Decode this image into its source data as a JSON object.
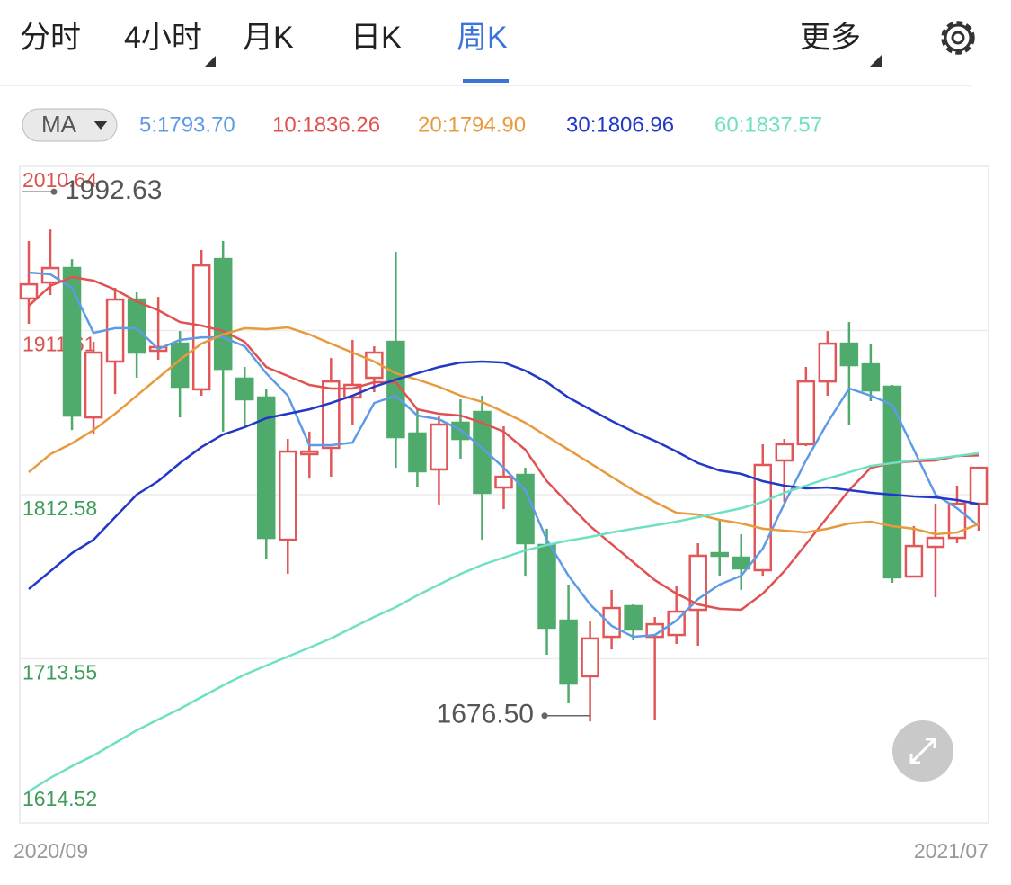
{
  "tabs": [
    "分时",
    "4小时",
    "月K",
    "日K",
    "周K"
  ],
  "active_tab": 4,
  "more": "更多",
  "indicator": "MA",
  "chart_data": {
    "type": "candlestick",
    "categories": [
      "2020/09",
      null,
      null,
      null,
      null,
      null,
      null,
      null,
      null,
      null,
      null,
      null,
      null,
      null,
      null,
      null,
      null,
      null,
      null,
      null,
      null,
      null,
      null,
      null,
      null,
      null,
      null,
      null,
      null,
      null,
      null,
      null,
      null,
      null,
      null,
      null,
      null,
      null,
      null,
      null,
      null,
      null,
      null,
      null,
      "2021/07"
    ],
    "open": [
      1930.9,
      1940.6,
      1949.3,
      1859.2,
      1892.9,
      1930.3,
      1899.4,
      1903.7,
      1876.1,
      1954.7,
      1882.6,
      1871.2,
      1785.4,
      1837.0,
      1840.8,
      1871.2,
      1883.1,
      1904.8,
      1849.5,
      1827.8,
      1856.0,
      1862.5,
      1816.9,
      1824.5,
      1782.2,
      1736.6,
      1703.0,
      1726.8,
      1745.3,
      1726.8,
      1727.9,
      1743.1,
      1777.3,
      1774.6,
      1767.0,
      1833.2,
      1843.0,
      1880.9,
      1903.7,
      1891.2,
      1877.7,
      1763.2,
      1781.1,
      1786.5,
      1807.1
    ],
    "high": [
      1965.6,
      1972.6,
      1954.7,
      1904.8,
      1937.4,
      1934.7,
      1931.9,
      1911.3,
      1960.2,
      1965.6,
      1889.6,
      1876.6,
      1846.2,
      1850.6,
      1895.0,
      1905.9,
      1902.1,
      1959.1,
      1863.6,
      1860.3,
      1870.1,
      1872.3,
      1853.8,
      1828.8,
      1792.0,
      1758.3,
      1736.6,
      1755.1,
      1746.4,
      1738.8,
      1757.2,
      1783.3,
      1797.4,
      1788.7,
      1843.0,
      1846.2,
      1889.6,
      1911.3,
      1916.7,
      1903.7,
      1878.8,
      1793.6,
      1807.1,
      1818.0,
      1828.8
    ],
    "low": [
      1915.7,
      1933.0,
      1851.6,
      1849.5,
      1873.3,
      1883.1,
      1894.0,
      1859.2,
      1872.3,
      1850.6,
      1853.8,
      1773.5,
      1764.8,
      1822.3,
      1823.4,
      1854.9,
      1874.4,
      1828.8,
      1816.9,
      1806.1,
      1834.3,
      1785.4,
      1803.9,
      1763.7,
      1716.0,
      1686.7,
      1675.8,
      1719.2,
      1724.7,
      1676.9,
      1722.5,
      1721.4,
      1763.7,
      1755.1,
      1763.7,
      1808.2,
      1841.9,
      1872.3,
      1854.9,
      1869.0,
      1759.4,
      1762.7,
      1750.7,
      1783.3,
      1790.9
    ],
    "close": [
      1939.5,
      1949.3,
      1860.3,
      1898.3,
      1930.3,
      1898.3,
      1901.6,
      1877.7,
      1950.9,
      1888.5,
      1870.1,
      1786.5,
      1838.6,
      1838.6,
      1880.9,
      1878.8,
      1898.3,
      1847.3,
      1826.7,
      1854.9,
      1846.2,
      1813.7,
      1823.4,
      1783.3,
      1732.3,
      1698.6,
      1725.8,
      1744.2,
      1731.2,
      1734.4,
      1742.0,
      1775.7,
      1775.7,
      1768.1,
      1830.5,
      1843.0,
      1880.9,
      1903.7,
      1890.7,
      1875.5,
      1762.7,
      1781.6,
      1786.5,
      1807.1,
      1828.8
    ],
    "up_color": "#e15759",
    "down_color": "#4fab6b",
    "series": [
      {
        "name": "5:1793.70",
        "color": "#5d9be4",
        "values": [
          1946.6,
          1945.5,
          1937.4,
          1910.2,
          1913.0,
          1913.0,
          1900.5,
          1905.9,
          1907.5,
          1907.5,
          1902.1,
          1885.8,
          1872.3,
          1842.4,
          1842.4,
          1844.0,
          1867.9,
          1872.3,
          1860.3,
          1858.1,
          1851.6,
          1840.8,
          1828.8,
          1815.3,
          1785.4,
          1763.7,
          1746.4,
          1733.4,
          1726.8,
          1727.9,
          1736.6,
          1749.6,
          1758.3,
          1763.7,
          1780.0,
          1807.1,
          1833.2,
          1856.0,
          1876.6,
          1872.3,
          1866.8,
          1839.7,
          1812.6,
          1804.4,
          1793.7
        ]
      },
      {
        "name": "10:1836.26",
        "color": "#e05252",
        "values": [
          1926.5,
          1938.5,
          1943.9,
          1941.7,
          1936.3,
          1929.2,
          1923.8,
          1916.7,
          1914.6,
          1911.3,
          1904.8,
          1889.6,
          1884.2,
          1878.8,
          1876.6,
          1876.6,
          1880.4,
          1880.4,
          1864.1,
          1861.4,
          1860.3,
          1856.0,
          1850.6,
          1839.7,
          1820.7,
          1807.1,
          1793.6,
          1782.7,
          1771.9,
          1761.0,
          1752.9,
          1746.4,
          1743.7,
          1743.1,
          1752.9,
          1766.4,
          1782.7,
          1799.0,
          1815.3,
          1828.8,
          1831.6,
          1832.7,
          1833.2,
          1835.9,
          1836.26
        ]
      },
      {
        "name": "20:1794.90",
        "color": "#e89a3c",
        "values": [
          1826.1,
          1837.0,
          1843.5,
          1851.6,
          1861.4,
          1872.3,
          1883.1,
          1894.0,
          1903.7,
          1909.2,
          1913.0,
          1912.4,
          1913.5,
          1909.2,
          1903.7,
          1898.3,
          1892.9,
          1885.8,
          1882.0,
          1877.7,
          1872.3,
          1868.5,
          1862.5,
          1856.0,
          1847.8,
          1839.7,
          1831.6,
          1823.4,
          1815.3,
          1808.2,
          1801.7,
          1800.6,
          1797.4,
          1795.2,
          1792.0,
          1790.9,
          1789.8,
          1792.0,
          1795.2,
          1796.3,
          1793.6,
          1792.0,
          1788.7,
          1789.8,
          1794.9
        ]
      },
      {
        "name": "30:1806.96",
        "color": "#2238c6",
        "values": [
          1755.6,
          1766.4,
          1777.3,
          1785.4,
          1799.0,
          1812.6,
          1820.7,
          1831.6,
          1841.3,
          1848.9,
          1853.3,
          1858.7,
          1861.4,
          1864.1,
          1867.9,
          1872.3,
          1877.7,
          1882.0,
          1885.8,
          1889.6,
          1892.3,
          1892.9,
          1892.3,
          1887.4,
          1880.4,
          1871.2,
          1864.1,
          1857.1,
          1850.6,
          1845.1,
          1838.6,
          1831.6,
          1827.2,
          1825.1,
          1820.7,
          1818.0,
          1816.4,
          1816.9,
          1815.3,
          1813.7,
          1812.6,
          1811.5,
          1810.9,
          1809.3,
          1806.96
        ]
      },
      {
        "name": "60:1837.57",
        "color": "#6fe0c4",
        "values": [
          1633.5,
          1641.7,
          1648.7,
          1655.2,
          1662.8,
          1670.4,
          1676.9,
          1683.4,
          1690.5,
          1697.5,
          1704.0,
          1709.5,
          1714.9,
          1720.3,
          1725.8,
          1732.3,
          1738.8,
          1744.7,
          1751.8,
          1758.3,
          1764.8,
          1770.2,
          1774.6,
          1778.9,
          1782.2,
          1784.9,
          1787.1,
          1789.8,
          1792.0,
          1794.1,
          1796.3,
          1799.0,
          1801.7,
          1804.4,
          1808.2,
          1813.7,
          1818.0,
          1822.3,
          1826.1,
          1829.9,
          1831.6,
          1833.2,
          1834.3,
          1835.9,
          1837.57
        ]
      }
    ],
    "ylim": [
      1614.52,
      2010.64
    ],
    "yticks": [
      1614.52,
      1713.55,
      1812.58,
      1911.61,
      2010.64
    ],
    "grid": true,
    "annotations": [
      1992.63,
      {
        "value": 1676.5,
        "label": "1676.50"
      }
    ]
  }
}
